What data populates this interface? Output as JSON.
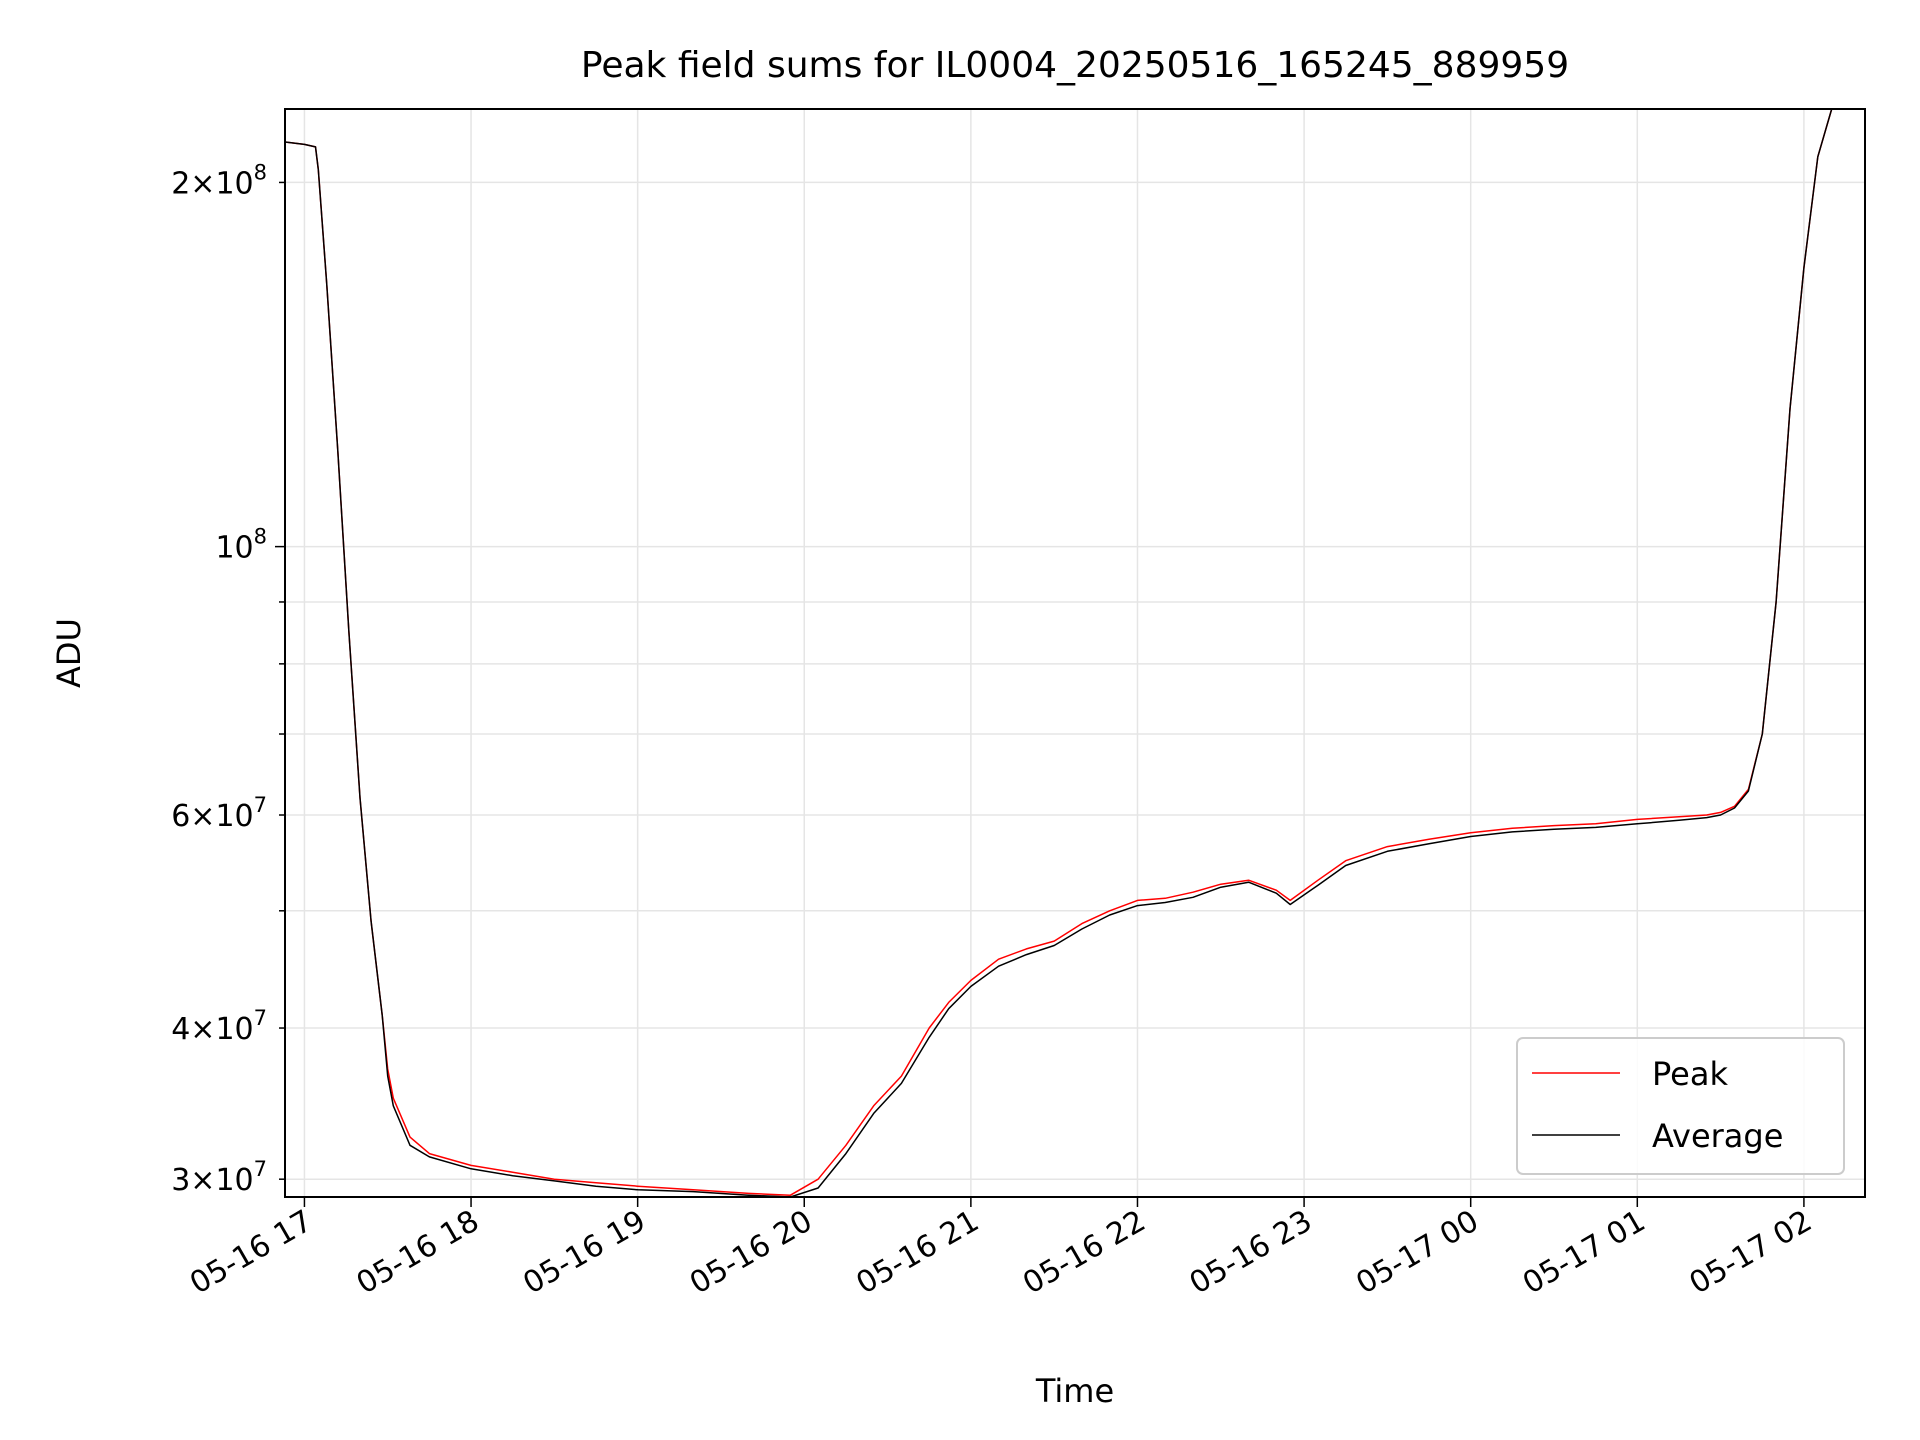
{
  "chart_data": {
    "type": "line",
    "title": "Peak field sums for IL0004_20250516_165245_889959",
    "xlabel": "Time",
    "ylabel": "ADU",
    "xlim": [
      "2025-05-16 16:53",
      "2025-05-17 02:22"
    ],
    "ylim": [
      29000000,
      230000000
    ],
    "yscale": "log",
    "grid": true,
    "legend_position": "lower-right",
    "x_ticks": [
      {
        "value": "2025-05-16 17:00",
        "label": "05-16 17"
      },
      {
        "value": "2025-05-16 18:00",
        "label": "05-16 18"
      },
      {
        "value": "2025-05-16 19:00",
        "label": "05-16 19"
      },
      {
        "value": "2025-05-16 20:00",
        "label": "05-16 20"
      },
      {
        "value": "2025-05-16 21:00",
        "label": "05-16 21"
      },
      {
        "value": "2025-05-16 22:00",
        "label": "05-16 22"
      },
      {
        "value": "2025-05-16 23:00",
        "label": "05-16 23"
      },
      {
        "value": "2025-05-17 00:00",
        "label": "05-17 00"
      },
      {
        "value": "2025-05-17 01:00",
        "label": "05-17 01"
      },
      {
        "value": "2025-05-17 02:00",
        "label": "05-17 02"
      }
    ],
    "y_ticks_major": [
      {
        "value": 100000000,
        "mantissa": "",
        "base": "10",
        "exp": "8"
      }
    ],
    "y_ticks_minor_labeled": [
      {
        "value": 30000000,
        "mantissa": "3",
        "base": "10",
        "exp": "7"
      },
      {
        "value": 40000000,
        "mantissa": "4",
        "base": "10",
        "exp": "7"
      },
      {
        "value": 60000000,
        "mantissa": "6",
        "base": "10",
        "exp": "7"
      },
      {
        "value": 200000000,
        "mantissa": "2",
        "base": "10",
        "exp": "8"
      }
    ],
    "y_ticks_minor_unlabeled": [
      50000000,
      70000000,
      80000000,
      90000000
    ],
    "series": [
      {
        "name": "Peak",
        "color": "#ff0000",
        "x": [
          "2025-05-16 16:53",
          "2025-05-16 17:00",
          "2025-05-16 17:04",
          "2025-05-16 17:05",
          "2025-05-16 17:08",
          "2025-05-16 17:12",
          "2025-05-16 17:16",
          "2025-05-16 17:20",
          "2025-05-16 17:24",
          "2025-05-16 17:28",
          "2025-05-16 17:30",
          "2025-05-16 17:32",
          "2025-05-16 17:38",
          "2025-05-16 17:45",
          "2025-05-16 18:00",
          "2025-05-16 18:15",
          "2025-05-16 18:30",
          "2025-05-16 18:45",
          "2025-05-16 19:00",
          "2025-05-16 19:20",
          "2025-05-16 19:40",
          "2025-05-16 19:55",
          "2025-05-16 20:05",
          "2025-05-16 20:15",
          "2025-05-16 20:25",
          "2025-05-16 20:35",
          "2025-05-16 20:45",
          "2025-05-16 20:52",
          "2025-05-16 21:00",
          "2025-05-16 21:10",
          "2025-05-16 21:20",
          "2025-05-16 21:30",
          "2025-05-16 21:40",
          "2025-05-16 21:50",
          "2025-05-16 22:00",
          "2025-05-16 22:10",
          "2025-05-16 22:20",
          "2025-05-16 22:30",
          "2025-05-16 22:40",
          "2025-05-16 22:50",
          "2025-05-16 22:55",
          "2025-05-16 23:05",
          "2025-05-16 23:15",
          "2025-05-16 23:30",
          "2025-05-16 23:45",
          "2025-05-17 00:00",
          "2025-05-17 00:15",
          "2025-05-17 00:30",
          "2025-05-17 00:45",
          "2025-05-17 01:00",
          "2025-05-17 01:15",
          "2025-05-17 01:25",
          "2025-05-17 01:30",
          "2025-05-17 01:35",
          "2025-05-17 01:40",
          "2025-05-17 01:45",
          "2025-05-17 01:50",
          "2025-05-17 01:55",
          "2025-05-17 02:00",
          "2025-05-17 02:05",
          "2025-05-17 02:10",
          "2025-05-17 02:22"
        ],
        "y": [
          216000000,
          215000000,
          214000000,
          205000000,
          165000000,
          120000000,
          85000000,
          62000000,
          49000000,
          41000000,
          37000000,
          35000000,
          32500000,
          31500000,
          30800000,
          30400000,
          30000000,
          29800000,
          29600000,
          29400000,
          29200000,
          29100000,
          30000000,
          32000000,
          34500000,
          36500000,
          40000000,
          42000000,
          43800000,
          45600000,
          46500000,
          47200000,
          48800000,
          50000000,
          51000000,
          51200000,
          51800000,
          52600000,
          53000000,
          52000000,
          51000000,
          53000000,
          55000000,
          56500000,
          57300000,
          58000000,
          58500000,
          58800000,
          59000000,
          59500000,
          59800000,
          60000000,
          60300000,
          61000000,
          63000000,
          70000000,
          90000000,
          130000000,
          170000000,
          210000000,
          230000000,
          230000000
        ]
      },
      {
        "name": "Average",
        "color": "#000000",
        "x": [
          "2025-05-16 16:53",
          "2025-05-16 17:00",
          "2025-05-16 17:04",
          "2025-05-16 17:05",
          "2025-05-16 17:08",
          "2025-05-16 17:12",
          "2025-05-16 17:16",
          "2025-05-16 17:20",
          "2025-05-16 17:24",
          "2025-05-16 17:28",
          "2025-05-16 17:30",
          "2025-05-16 17:32",
          "2025-05-16 17:38",
          "2025-05-16 17:45",
          "2025-05-16 18:00",
          "2025-05-16 18:15",
          "2025-05-16 18:30",
          "2025-05-16 18:45",
          "2025-05-16 19:00",
          "2025-05-16 19:20",
          "2025-05-16 19:40",
          "2025-05-16 19:55",
          "2025-05-16 20:05",
          "2025-05-16 20:15",
          "2025-05-16 20:25",
          "2025-05-16 20:35",
          "2025-05-16 20:45",
          "2025-05-16 20:52",
          "2025-05-16 21:00",
          "2025-05-16 21:10",
          "2025-05-16 21:20",
          "2025-05-16 21:30",
          "2025-05-16 21:40",
          "2025-05-16 21:50",
          "2025-05-16 22:00",
          "2025-05-16 22:10",
          "2025-05-16 22:20",
          "2025-05-16 22:30",
          "2025-05-16 22:40",
          "2025-05-16 22:50",
          "2025-05-16 22:55",
          "2025-05-16 23:05",
          "2025-05-16 23:15",
          "2025-05-16 23:30",
          "2025-05-16 23:45",
          "2025-05-17 00:00",
          "2025-05-17 00:15",
          "2025-05-17 00:30",
          "2025-05-17 00:45",
          "2025-05-17 01:00",
          "2025-05-17 01:15",
          "2025-05-17 01:25",
          "2025-05-17 01:30",
          "2025-05-17 01:35",
          "2025-05-17 01:40",
          "2025-05-17 01:45",
          "2025-05-17 01:50",
          "2025-05-17 01:55",
          "2025-05-17 02:00",
          "2025-05-17 02:05",
          "2025-05-17 02:10",
          "2025-05-17 02:22"
        ],
        "y": [
          216000000,
          215000000,
          214000000,
          205000000,
          165000000,
          120000000,
          85000000,
          62000000,
          49000000,
          41000000,
          36500000,
          34500000,
          32000000,
          31300000,
          30600000,
          30200000,
          29900000,
          29600000,
          29400000,
          29300000,
          29100000,
          29000000,
          29500000,
          31500000,
          34000000,
          36000000,
          39300000,
          41500000,
          43300000,
          45000000,
          46000000,
          46800000,
          48300000,
          49600000,
          50500000,
          50800000,
          51300000,
          52300000,
          52800000,
          51700000,
          50600000,
          52500000,
          54500000,
          56000000,
          56800000,
          57600000,
          58100000,
          58400000,
          58600000,
          59000000,
          59400000,
          59700000,
          60000000,
          60800000,
          62800000,
          70000000,
          90000000,
          130000000,
          170000000,
          210000000,
          230000000,
          230000000
        ]
      }
    ]
  }
}
